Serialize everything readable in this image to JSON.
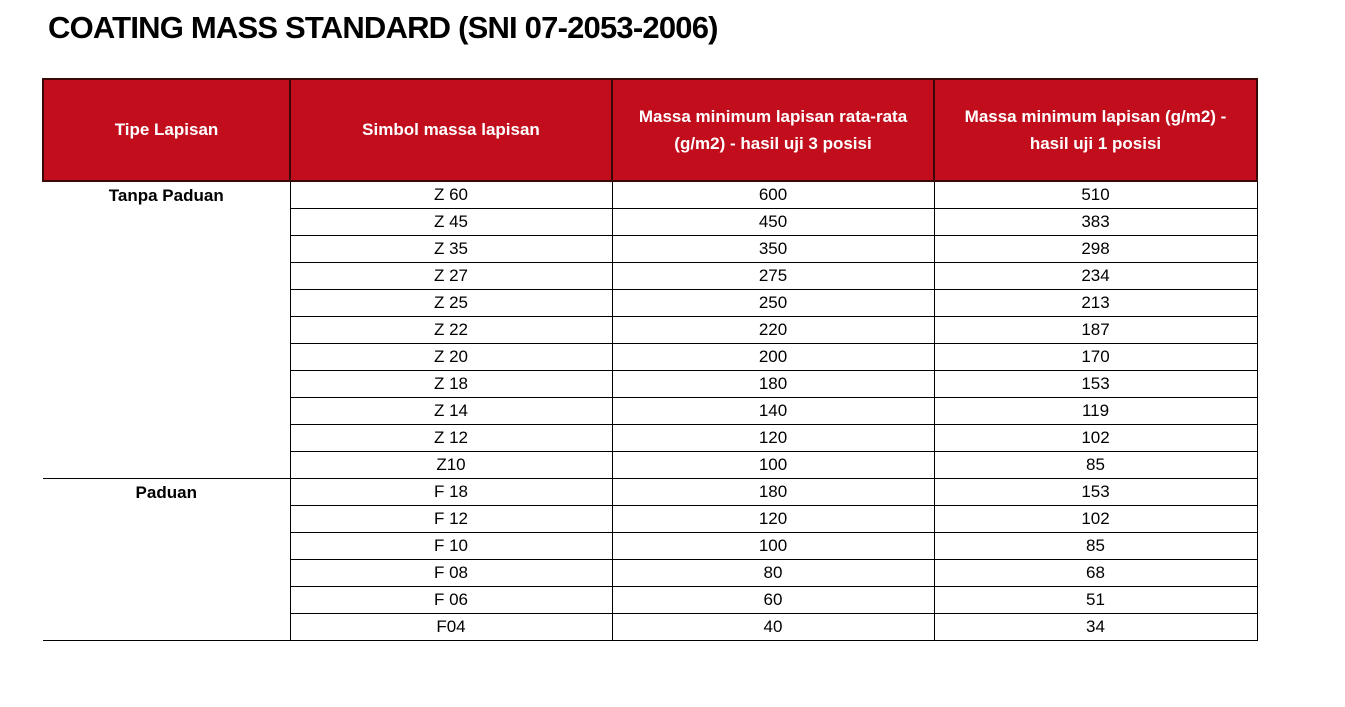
{
  "page": {
    "title": "COATING MASS STANDARD (SNI 07-2053-2006)"
  },
  "colors": {
    "header_bg": "#c20e1c",
    "header_text": "#ffffff",
    "header_border": "#3b0808",
    "grid_line": "#000000",
    "title_color": "#000000"
  },
  "table": {
    "columns": [
      "Tipe Lapisan",
      "Simbol massa lapisan",
      "Massa minimum lapisan rata-rata (g/m2) - hasil uji  3 posisi",
      "Massa minimum lapisan  (g/m2) - hasil uji  1 posisi"
    ],
    "groups": [
      {
        "type": "Tanpa Paduan",
        "rows": [
          {
            "symbol": "Z 60",
            "mass_3pos": "600",
            "mass_1pos": "510"
          },
          {
            "symbol": "Z 45",
            "mass_3pos": "450",
            "mass_1pos": "383"
          },
          {
            "symbol": "Z 35",
            "mass_3pos": "350",
            "mass_1pos": "298"
          },
          {
            "symbol": "Z 27",
            "mass_3pos": "275",
            "mass_1pos": "234"
          },
          {
            "symbol": "Z 25",
            "mass_3pos": "250",
            "mass_1pos": "213"
          },
          {
            "symbol": "Z 22",
            "mass_3pos": "220",
            "mass_1pos": "187"
          },
          {
            "symbol": "Z 20",
            "mass_3pos": "200",
            "mass_1pos": "170"
          },
          {
            "symbol": "Z 18",
            "mass_3pos": "180",
            "mass_1pos": "153"
          },
          {
            "symbol": "Z 14",
            "mass_3pos": "140",
            "mass_1pos": "119"
          },
          {
            "symbol": "Z 12",
            "mass_3pos": "120",
            "mass_1pos": "102"
          },
          {
            "symbol": "Z10",
            "mass_3pos": "100",
            "mass_1pos": "85"
          }
        ]
      },
      {
        "type": "Paduan",
        "rows": [
          {
            "symbol": "F 18",
            "mass_3pos": "180",
            "mass_1pos": "153"
          },
          {
            "symbol": "F 12",
            "mass_3pos": "120",
            "mass_1pos": "102"
          },
          {
            "symbol": "F 10",
            "mass_3pos": "100",
            "mass_1pos": "85"
          },
          {
            "symbol": "F 08",
            "mass_3pos": "80",
            "mass_1pos": "68"
          },
          {
            "symbol": "F 06",
            "mass_3pos": "60",
            "mass_1pos": "51"
          },
          {
            "symbol": "F04",
            "mass_3pos": "40",
            "mass_1pos": "34"
          }
        ]
      }
    ]
  }
}
